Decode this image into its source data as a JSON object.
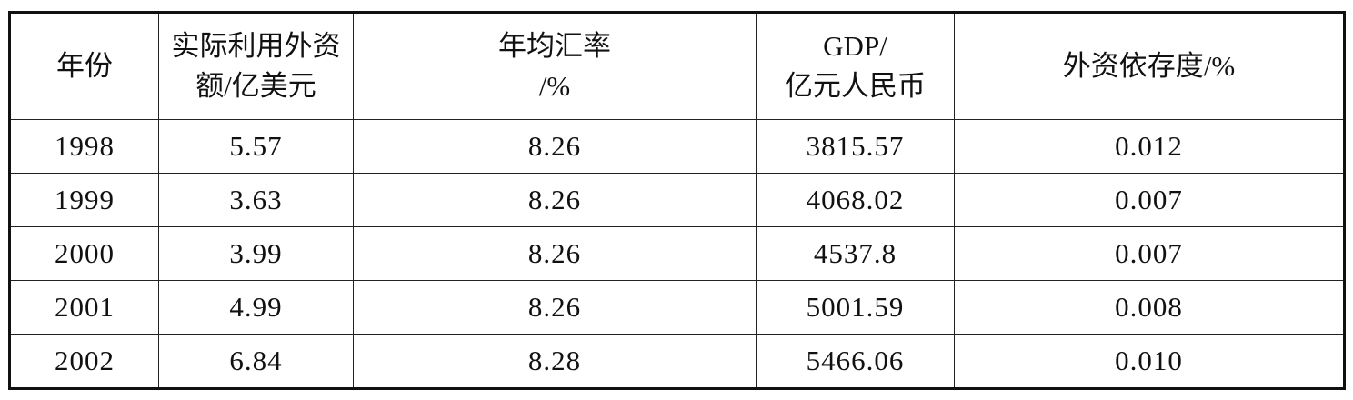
{
  "table": {
    "headers": [
      [
        "年份"
      ],
      [
        "实际利用外资",
        "额/亿美元"
      ],
      [
        "年均汇率",
        "/%"
      ],
      [
        "GDP/",
        "亿元人民币"
      ],
      [
        "外资依存度/%"
      ]
    ],
    "rows": [
      [
        "1998",
        "5.57",
        "8.26",
        "3815.57",
        "0.012"
      ],
      [
        "1999",
        "3.63",
        "8.26",
        "4068.02",
        "0.007"
      ],
      [
        "2000",
        "3.99",
        "8.26",
        "4537.8",
        "0.007"
      ],
      [
        "2001",
        "4.99",
        "8.26",
        "5001.59",
        "0.008"
      ],
      [
        "2002",
        "6.84",
        "8.28",
        "5466.06",
        "0.010"
      ]
    ]
  }
}
